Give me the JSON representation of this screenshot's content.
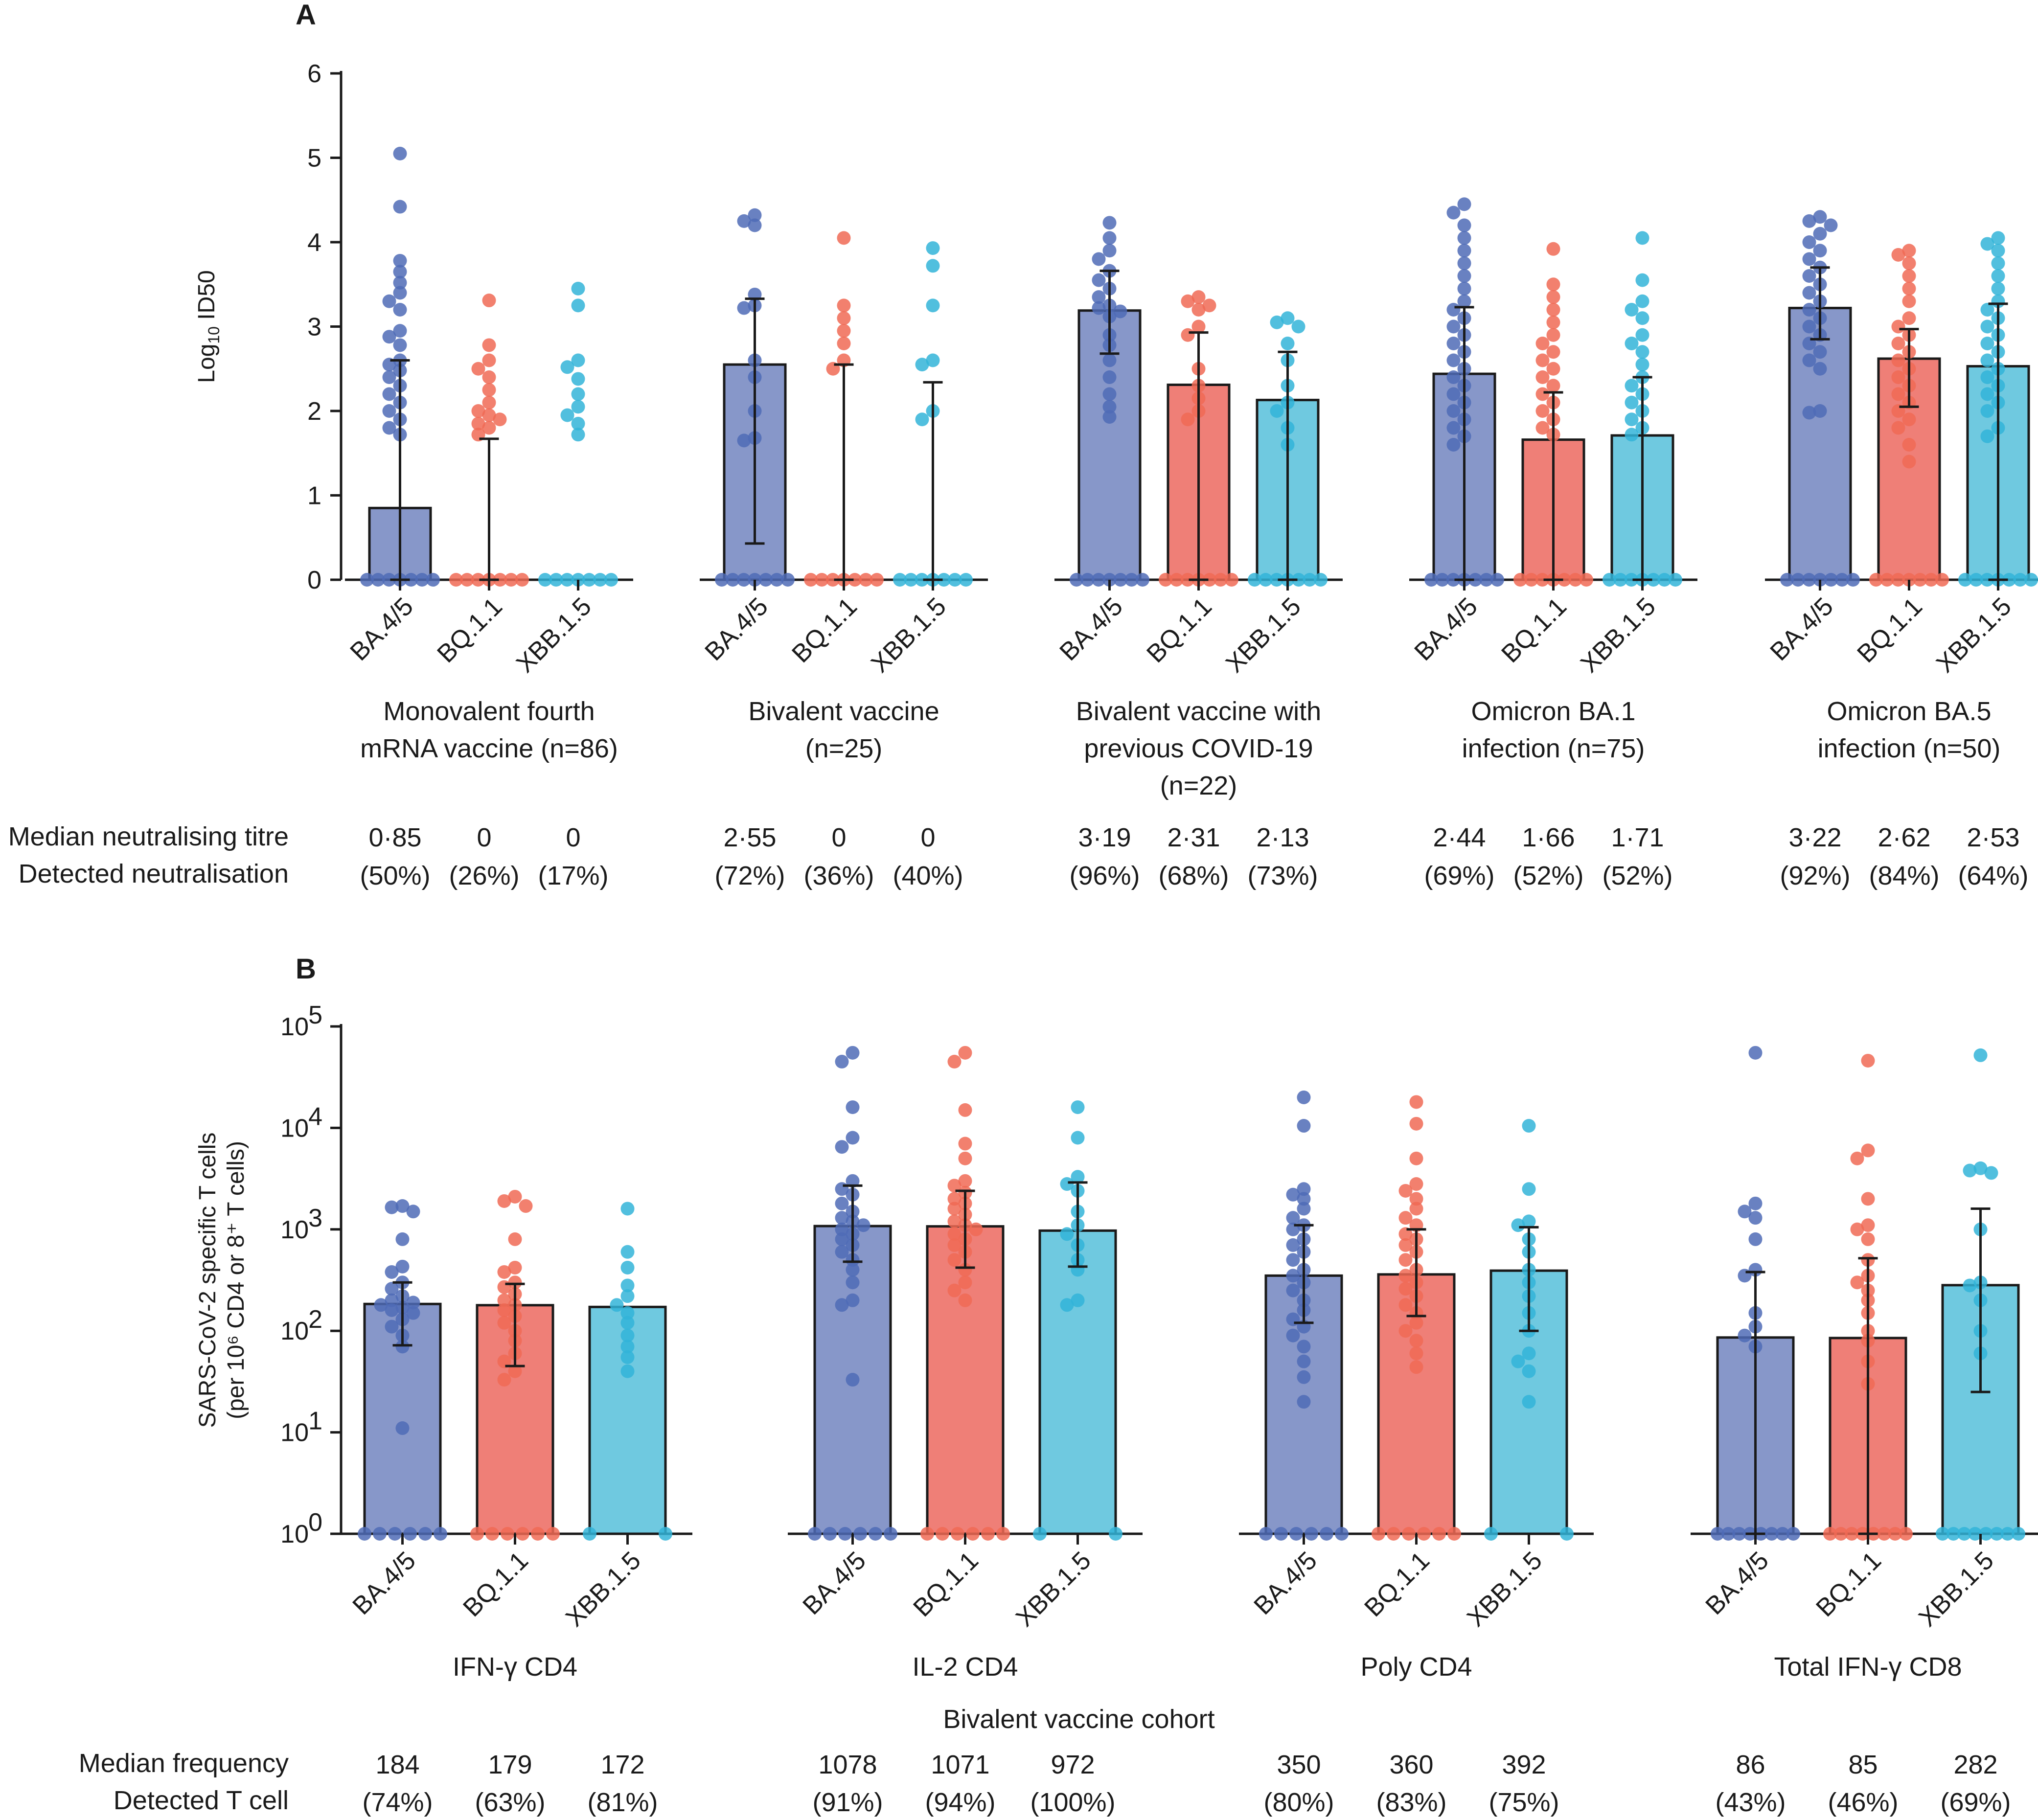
{
  "colors": {
    "BA.4/5": "#8797c9",
    "BQ.1.1": "#ef7f77",
    "XBB.1.5": "#6fc9e0",
    "dot_BA.4/5": "#4f6bb6",
    "dot_BQ.1.1": "#f06a55",
    "dot_XBB.1.5": "#32b4d8"
  },
  "chart_data": [
    {
      "type": "bar",
      "panel": "A",
      "ylabel_main": "Log",
      "ylabel_sub": "10",
      "ylabel_tail": " ID50",
      "ylim": [
        0,
        6
      ],
      "yticks": [
        "0",
        "1",
        "2",
        "3",
        "4",
        "5",
        "6"
      ],
      "categories": [
        "BA.4/5",
        "BQ.1.1",
        "XBB.1.5"
      ],
      "row_labels": [
        "Median neutralising titre",
        "Detected neutralisation"
      ],
      "groups": [
        {
          "label_lines": [
            "Monovalent fourth",
            "mRNA vaccine (n=86)"
          ],
          "values": [
            0.85,
            0,
            0
          ],
          "err_low": [
            0,
            0,
            0
          ],
          "err_high": [
            2.6,
            1.67,
            0
          ],
          "median_text": [
            "0·85",
            "0",
            "0"
          ],
          "detected_text": [
            "(50%)",
            "(26%)",
            "(17%)"
          ]
        },
        {
          "label_lines": [
            "Bivalent vaccine",
            "(n=25)"
          ],
          "values": [
            2.55,
            0,
            0
          ],
          "err_low": [
            0.43,
            0,
            0
          ],
          "err_high": [
            3.33,
            2.55,
            2.34
          ],
          "median_text": [
            "2·55",
            "0",
            "0"
          ],
          "detected_text": [
            "(72%)",
            "(36%)",
            "(40%)"
          ]
        },
        {
          "label_lines": [
            "Bivalent vaccine with",
            "previous COVID-19",
            "(n=22)"
          ],
          "values": [
            3.19,
            2.31,
            2.13
          ],
          "err_low": [
            2.68,
            0,
            0
          ],
          "err_high": [
            3.66,
            2.93,
            2.7
          ],
          "median_text": [
            "3·19",
            "2·31",
            "2·13"
          ],
          "detected_text": [
            "(96%)",
            "(68%)",
            "(73%)"
          ]
        },
        {
          "label_lines": [
            "Omicron BA.1",
            "infection (n=75)"
          ],
          "values": [
            2.44,
            1.66,
            1.71
          ],
          "err_low": [
            0,
            0,
            0
          ],
          "err_high": [
            3.23,
            2.22,
            2.4
          ],
          "median_text": [
            "2·44",
            "1·66",
            "1·71"
          ],
          "detected_text": [
            "(69%)",
            "(52%)",
            "(52%)"
          ]
        },
        {
          "label_lines": [
            "Omicron BA.5",
            "infection (n=50)"
          ],
          "values": [
            3.22,
            2.62,
            2.53
          ],
          "err_low": [
            2.85,
            2.05,
            0
          ],
          "err_high": [
            3.7,
            2.97,
            3.27
          ],
          "median_text": [
            "3·22",
            "2·62",
            "2·53"
          ],
          "detected_text": [
            "(92%)",
            "(84%)",
            "(64%)"
          ]
        }
      ],
      "points": [
        [
          [
            5.05,
            4.42,
            3.78,
            3.65,
            3.52,
            3.4,
            3.3,
            3.2,
            2.95,
            2.88,
            2.78,
            2.6,
            2.55,
            2.48,
            2.4,
            2.3,
            2.2,
            2.1,
            2.0,
            1.9,
            1.8,
            1.72
          ],
          [
            3.31,
            2.78,
            2.6,
            2.5,
            2.4,
            2.25,
            2.1,
            2.0,
            1.95,
            1.9,
            1.85,
            1.8,
            1.72
          ],
          [
            3.45,
            3.25,
            2.6,
            2.52,
            2.38,
            2.2,
            2.05,
            1.95,
            1.85,
            1.72
          ]
        ],
        [
          [
            4.32,
            4.25,
            4.2,
            3.38,
            3.25,
            3.22,
            2.6,
            2.4,
            2.0,
            1.68,
            1.65
          ],
          [
            4.05,
            3.25,
            3.1,
            2.95,
            2.8,
            2.6,
            2.5
          ],
          [
            3.93,
            3.72,
            3.25,
            2.6,
            2.55,
            2.0,
            1.9
          ]
        ],
        [
          [
            4.23,
            4.05,
            3.9,
            3.8,
            3.66,
            3.55,
            3.45,
            3.35,
            3.25,
            3.22,
            3.18,
            3.12,
            2.9,
            2.78,
            2.6,
            2.4,
            2.2,
            2.05,
            1.93
          ],
          [
            3.35,
            3.3,
            3.25,
            3.2,
            3.0,
            2.9,
            2.5,
            2.3,
            2.15,
            2.0,
            1.9
          ],
          [
            3.1,
            3.05,
            3.0,
            2.8,
            2.6,
            2.3,
            2.1,
            2.0,
            1.8,
            1.6
          ]
        ],
        [
          [
            4.45,
            4.35,
            4.2,
            4.05,
            3.9,
            3.75,
            3.6,
            3.45,
            3.3,
            3.2,
            3.1,
            3.0,
            2.9,
            2.8,
            2.7,
            2.6,
            2.5,
            2.4,
            2.3,
            2.2,
            2.1,
            2.0,
            1.9,
            1.8,
            1.7,
            1.6
          ],
          [
            3.92,
            3.5,
            3.35,
            3.2,
            3.05,
            2.9,
            2.8,
            2.7,
            2.6,
            2.5,
            2.4,
            2.3,
            2.2,
            2.1,
            2.0,
            1.9,
            1.8,
            1.72
          ],
          [
            4.05,
            3.55,
            3.3,
            3.2,
            3.1,
            2.9,
            2.8,
            2.7,
            2.55,
            2.4,
            2.3,
            2.2,
            2.1,
            2.0,
            1.9,
            1.8,
            1.72
          ]
        ],
        [
          [
            4.3,
            4.25,
            4.2,
            4.1,
            4.0,
            3.9,
            3.8,
            3.7,
            3.6,
            3.5,
            3.4,
            3.3,
            3.2,
            3.1,
            3.0,
            2.9,
            2.8,
            2.7,
            2.6,
            2.5,
            2.0,
            1.98
          ],
          [
            3.9,
            3.85,
            3.75,
            3.6,
            3.45,
            3.3,
            3.1,
            3.0,
            2.9,
            2.8,
            2.7,
            2.6,
            2.5,
            2.4,
            2.3,
            2.2,
            2.1,
            2.0,
            1.9,
            1.8,
            1.6,
            1.4
          ],
          [
            4.05,
            3.98,
            3.9,
            3.75,
            3.6,
            3.45,
            3.3,
            3.2,
            3.1,
            3.0,
            2.9,
            2.8,
            2.7,
            2.6,
            2.5,
            2.4,
            2.3,
            2.2,
            2.1,
            2.0,
            1.8,
            1.7
          ]
        ]
      ]
    },
    {
      "type": "bar",
      "panel": "B",
      "ylabel_lines": [
        "SARS-CoV-2 specific T cells",
        "(per 10⁶ CD4 or 8⁺ T cells)"
      ],
      "yscale": "log",
      "ylim_exp": [
        0,
        5
      ],
      "yticks": [
        {
          "base": "10",
          "exp": "0"
        },
        {
          "base": "10",
          "exp": "1"
        },
        {
          "base": "10",
          "exp": "2"
        },
        {
          "base": "10",
          "exp": "3"
        },
        {
          "base": "10",
          "exp": "4"
        },
        {
          "base": "10",
          "exp": "5"
        }
      ],
      "categories": [
        "BA.4/5",
        "BQ.1.1",
        "XBB.1.5"
      ],
      "cohort_label": "Bivalent vaccine cohort",
      "row_labels": [
        "Median frequency",
        "Detected T cell"
      ],
      "groups": [
        {
          "label": "IFN-γ CD4",
          "values": [
            184,
            179,
            172
          ],
          "err_low": [
            72,
            45,
            0
          ],
          "err_high": [
            300,
            290,
            0
          ],
          "median_text": [
            "184",
            "179",
            "172"
          ],
          "detected_text": [
            "(74%)",
            "(63%)",
            "(81%)"
          ]
        },
        {
          "label": "IL-2 CD4",
          "values": [
            1078,
            1071,
            972
          ],
          "err_low": [
            480,
            420,
            430
          ],
          "err_high": [
            2700,
            2400,
            2900
          ],
          "median_text": [
            "1078",
            "1071",
            "972"
          ],
          "detected_text": [
            "(91%)",
            "(94%)",
            "(100%)"
          ]
        },
        {
          "label": "Poly CD4",
          "values": [
            350,
            360,
            392
          ],
          "err_low": [
            120,
            140,
            100
          ],
          "err_high": [
            1100,
            1000,
            1050
          ],
          "median_text": [
            "350",
            "360",
            "392"
          ],
          "detected_text": [
            "(80%)",
            "(83%)",
            "(75%)"
          ]
        },
        {
          "label": "Total IFN-γ CD8",
          "values": [
            86,
            85,
            282
          ],
          "err_low": [
            1,
            1,
            25
          ],
          "err_high": [
            380,
            520,
            1600
          ],
          "median_text": [
            "86",
            "85",
            "282"
          ],
          "detected_text": [
            "(43%)",
            "(46%)",
            "(69%)"
          ]
        }
      ],
      "points": [
        [
          [
            1700,
            1650,
            1500,
            800,
            430,
            380,
            300,
            260,
            220,
            200,
            190,
            180,
            170,
            160,
            150,
            130,
            110,
            90,
            70,
            11
          ],
          [
            2100,
            1900,
            1700,
            800,
            420,
            380,
            300,
            270,
            230,
            200,
            180,
            160,
            140,
            120,
            100,
            80,
            60,
            50,
            40,
            33
          ],
          [
            1600,
            600,
            420,
            280,
            220,
            180,
            150,
            120,
            90,
            70,
            55,
            40
          ]
        ],
        [
          [
            55000,
            45000,
            16000,
            8000,
            6500,
            3000,
            2500,
            2200,
            1800,
            1500,
            1300,
            1200,
            1100,
            1000,
            900,
            800,
            700,
            600,
            500,
            400,
            300,
            200,
            180,
            33
          ],
          [
            55000,
            45000,
            15000,
            7000,
            5000,
            3000,
            2700,
            2300,
            2000,
            1800,
            1600,
            1400,
            1200,
            1100,
            1000,
            900,
            800,
            700,
            600,
            500,
            400,
            300,
            250,
            200
          ],
          [
            16000,
            8000,
            3300,
            2800,
            2400,
            1500,
            1100,
            900,
            700,
            500,
            400,
            200,
            180
          ]
        ],
        [
          [
            20000,
            10500,
            2500,
            2200,
            2000,
            1600,
            1300,
            1100,
            1000,
            800,
            700,
            600,
            500,
            400,
            350,
            300,
            250,
            200,
            160,
            130,
            110,
            90,
            70,
            50,
            35,
            20
          ],
          [
            18000,
            11000,
            5000,
            2800,
            2400,
            2000,
            1600,
            1300,
            1100,
            900,
            800,
            700,
            600,
            500,
            400,
            350,
            300,
            260,
            220,
            180,
            150,
            120,
            100,
            80,
            60,
            44
          ],
          [
            10500,
            2500,
            1200,
            1100,
            800,
            600,
            400,
            300,
            220,
            150,
            100,
            60,
            50,
            40,
            20
          ]
        ],
        [
          [
            55000,
            1800,
            1500,
            1300,
            800,
            400,
            350,
            150,
            110,
            90,
            70
          ],
          [
            46000,
            6000,
            5000,
            2000,
            1100,
            1000,
            800,
            500,
            350,
            300,
            250,
            200,
            150,
            100,
            80,
            50,
            30
          ],
          [
            52000,
            4000,
            3800,
            3600,
            1000,
            300,
            280,
            200,
            100,
            60
          ]
        ]
      ]
    }
  ]
}
